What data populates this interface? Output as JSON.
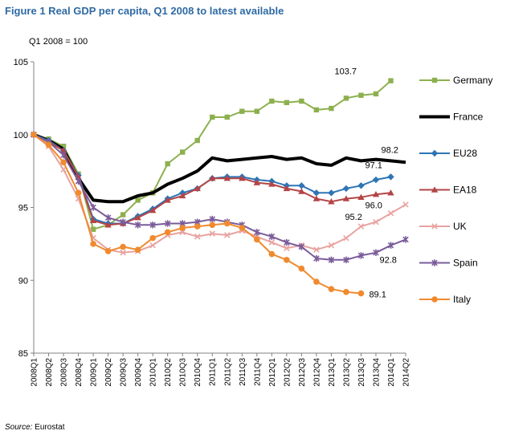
{
  "figure": {
    "title": "Figure 1 Real GDP per capita, Q1 2008 to latest available",
    "index_note": "Q1 2008  = 100",
    "source_label": "Source:",
    "source_value": " Eurostat"
  },
  "chart_data": {
    "type": "line",
    "title": "Figure 1 Real GDP per capita, Q1 2008 to latest available",
    "xlabel": "",
    "ylabel": "",
    "ylim": [
      85,
      105
    ],
    "yticks": [
      85,
      90,
      95,
      100,
      105
    ],
    "grid": false,
    "legend_position": "right",
    "categories": [
      "2008Q1",
      "2008Q2",
      "2008Q3",
      "2008Q4",
      "2009Q1",
      "2009Q2",
      "2009Q3",
      "2009Q4",
      "2010Q1",
      "2010Q2",
      "2010Q3",
      "2010Q4",
      "2011Q1",
      "2011Q2",
      "2011Q3",
      "2011Q4",
      "2012Q1",
      "2012Q2",
      "2012Q3",
      "2012Q4",
      "2013Q1",
      "2013Q2",
      "2013Q3",
      "2013Q4",
      "2014Q1",
      "2014Q2"
    ],
    "series": [
      {
        "name": "Germany",
        "color": "#8db04f",
        "marker": "square",
        "width": 2,
        "values": [
          100,
          99.7,
          99.2,
          97.3,
          93.5,
          93.8,
          94.5,
          95.5,
          96.0,
          98.0,
          98.8,
          99.6,
          101.2,
          101.2,
          101.6,
          101.6,
          102.3,
          102.2,
          102.3,
          101.7,
          101.8,
          102.5,
          102.7,
          102.8,
          103.7,
          null
        ],
        "end_label": "103.7",
        "end_label_index": 24
      },
      {
        "name": "France",
        "color": "#000000",
        "marker": "none",
        "width": 4,
        "values": [
          100,
          99.6,
          99.0,
          97.0,
          95.5,
          95.4,
          95.4,
          95.8,
          96.0,
          96.6,
          97.0,
          97.5,
          98.4,
          98.2,
          98.3,
          98.4,
          98.5,
          98.3,
          98.4,
          98.0,
          97.9,
          98.4,
          98.2,
          98.3,
          98.2,
          98.1
        ],
        "end_label": "98.2",
        "end_label_index": 24
      },
      {
        "name": "EU28",
        "color": "#2e75b6",
        "marker": "diamond",
        "width": 2,
        "values": [
          100,
          99.6,
          98.9,
          97.2,
          94.2,
          93.9,
          93.9,
          94.4,
          94.9,
          95.6,
          96.0,
          96.3,
          97.0,
          97.1,
          97.1,
          96.9,
          96.8,
          96.5,
          96.5,
          96.0,
          96.0,
          96.3,
          96.5,
          96.9,
          97.1,
          null
        ],
        "end_label": "97.1",
        "end_label_index": 24
      },
      {
        "name": "EA18",
        "color": "#b44446",
        "marker": "triangle",
        "width": 2,
        "values": [
          100,
          99.5,
          98.9,
          97.1,
          94.1,
          93.8,
          93.9,
          94.3,
          94.8,
          95.5,
          95.8,
          96.3,
          97.0,
          97.0,
          97.0,
          96.7,
          96.6,
          96.3,
          96.1,
          95.6,
          95.4,
          95.6,
          95.7,
          95.9,
          96.0,
          null
        ],
        "end_label": "96.0",
        "end_label_index": 24
      },
      {
        "name": "UK",
        "color": "#e8a3a1",
        "marker": "x",
        "width": 2,
        "values": [
          100,
          99.2,
          97.6,
          95.6,
          92.9,
          92.1,
          91.9,
          92.0,
          92.4,
          93.1,
          93.3,
          93.0,
          93.2,
          93.1,
          93.4,
          93.0,
          92.6,
          92.2,
          92.4,
          92.1,
          92.4,
          92.9,
          93.7,
          94.0,
          94.6,
          95.2
        ],
        "end_label": "95.2",
        "end_label_index": 22
      },
      {
        "name": "Spain",
        "color": "#7a5c9a",
        "marker": "star",
        "width": 2,
        "values": [
          100,
          99.5,
          98.6,
          96.8,
          95.0,
          94.3,
          94.0,
          93.8,
          93.8,
          93.9,
          93.9,
          94.0,
          94.2,
          94.0,
          93.8,
          93.3,
          93.0,
          92.6,
          92.3,
          91.5,
          91.4,
          91.4,
          91.7,
          91.9,
          92.4,
          92.8
        ],
        "end_label": "92.8",
        "end_label_index": 24
      },
      {
        "name": "Italy",
        "color": "#f08a2e",
        "marker": "circle",
        "width": 2,
        "values": [
          100,
          99.3,
          98.1,
          96.0,
          92.5,
          92.0,
          92.3,
          92.1,
          92.9,
          93.3,
          93.6,
          93.7,
          93.8,
          93.9,
          93.6,
          92.8,
          91.8,
          91.4,
          90.8,
          89.9,
          89.4,
          89.2,
          89.1,
          null,
          null,
          null
        ],
        "end_label": "89.1",
        "end_label_index": 22
      }
    ]
  }
}
